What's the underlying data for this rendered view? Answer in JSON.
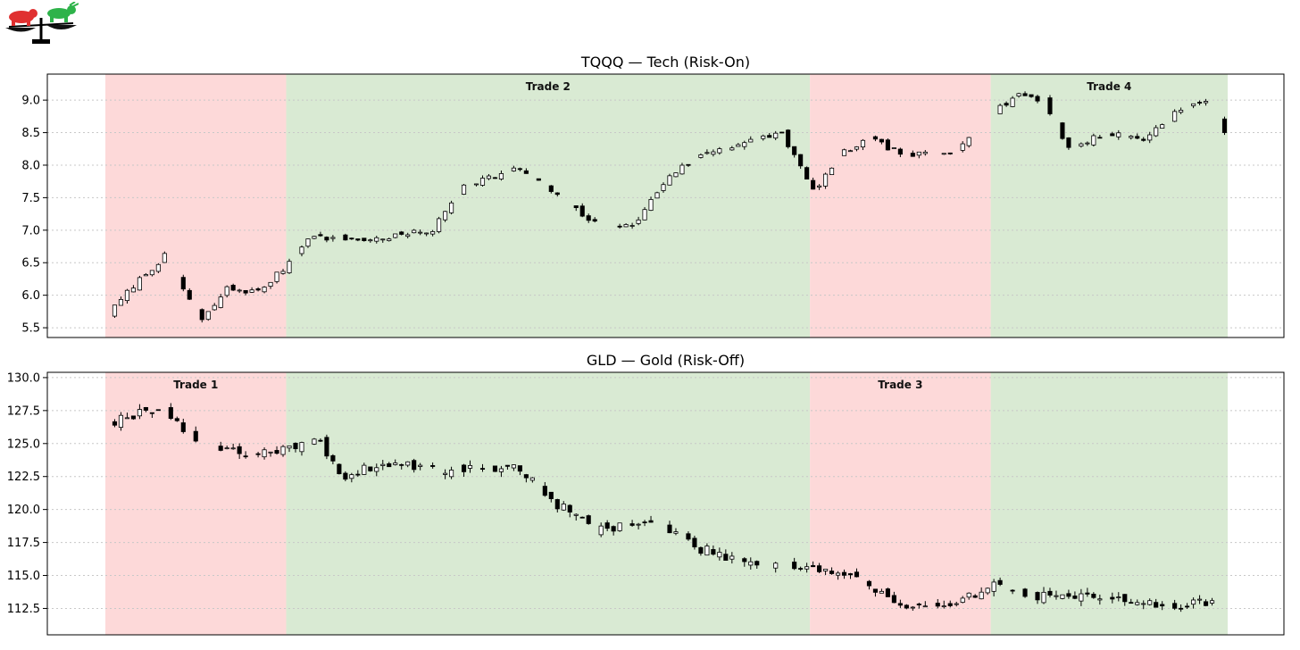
{
  "colors": {
    "risk_off_band": "#fdd9d9",
    "risk_on_band": "#d9ead3",
    "candle_up_fill": "#ffffff",
    "candle_down_fill": "#000000",
    "candle_edge": "#000000",
    "grid": "#c8c8c8",
    "logo_bear": "#e03030",
    "logo_bull": "#2eb34a"
  },
  "logo": {
    "icon_name": "bear-bull-balance-scale-icon"
  },
  "chart_data": [
    {
      "type": "candlestick",
      "title": "TQQQ — Tech (Risk-On)",
      "ylim": [
        5.35,
        9.4
      ],
      "yticks": [
        5.5,
        6.0,
        6.5,
        7.0,
        7.5,
        8.0,
        8.5,
        9.0
      ],
      "ytick_labels": [
        "5.5",
        "6.0",
        "6.5",
        "7.0",
        "7.5",
        "8.0",
        "8.5",
        "9.0"
      ],
      "grid": "horizontal-dotted",
      "n_bars": 180,
      "bands": [
        {
          "start": 0,
          "end": 29,
          "kind": "risk-off",
          "label": ""
        },
        {
          "start": 29,
          "end": 113,
          "kind": "risk-on",
          "label": "Trade 2"
        },
        {
          "start": 113,
          "end": 142,
          "kind": "risk-off",
          "label": ""
        },
        {
          "start": 142,
          "end": 180,
          "kind": "risk-on",
          "label": "Trade 4"
        }
      ],
      "anchors": [
        [
          0,
          5.7
        ],
        [
          4,
          6.15
        ],
        [
          9,
          6.6
        ],
        [
          15,
          5.6
        ],
        [
          19,
          6.1
        ],
        [
          24,
          6.05
        ],
        [
          28,
          6.4
        ],
        [
          32,
          6.9
        ],
        [
          42,
          6.85
        ],
        [
          52,
          7.0
        ],
        [
          57,
          7.7
        ],
        [
          66,
          7.95
        ],
        [
          78,
          7.1
        ],
        [
          84,
          7.05
        ],
        [
          90,
          7.85
        ],
        [
          96,
          8.2
        ],
        [
          108,
          8.5
        ],
        [
          113,
          7.6
        ],
        [
          118,
          8.2
        ],
        [
          122,
          8.4
        ],
        [
          128,
          8.15
        ],
        [
          135,
          8.2
        ],
        [
          142,
          8.8
        ],
        [
          146,
          9.1
        ],
        [
          150,
          9.0
        ],
        [
          154,
          8.25
        ],
        [
          160,
          8.5
        ],
        [
          166,
          8.4
        ],
        [
          171,
          8.8
        ],
        [
          176,
          9.0
        ],
        [
          180,
          8.3
        ]
      ],
      "vol": 0.055,
      "seed": 7
    },
    {
      "type": "candlestick",
      "title": "GLD — Gold (Risk-Off)",
      "ylim": [
        110.5,
        130.4
      ],
      "yticks": [
        112.5,
        115.0,
        117.5,
        120.0,
        122.5,
        125.0,
        127.5,
        130.0
      ],
      "ytick_labels": [
        "112.5",
        "115.0",
        "117.5",
        "120.0",
        "122.5",
        "125.0",
        "127.5",
        "130.0"
      ],
      "grid": "horizontal-dotted",
      "n_bars": 180,
      "bands": [
        {
          "start": 0,
          "end": 29,
          "kind": "risk-off",
          "label": "Trade 1"
        },
        {
          "start": 29,
          "end": 113,
          "kind": "risk-on",
          "label": ""
        },
        {
          "start": 113,
          "end": 142,
          "kind": "risk-off",
          "label": "Trade 3"
        },
        {
          "start": 142,
          "end": 180,
          "kind": "risk-on",
          "label": ""
        }
      ],
      "anchors": [
        [
          0,
          126.6
        ],
        [
          8,
          127.8
        ],
        [
          14,
          125.3
        ],
        [
          22,
          124.3
        ],
        [
          30,
          124.6
        ],
        [
          34,
          125.2
        ],
        [
          37,
          122.5
        ],
        [
          45,
          123.5
        ],
        [
          52,
          123.0
        ],
        [
          66,
          123.2
        ],
        [
          70,
          121.0
        ],
        [
          78,
          118.6
        ],
        [
          88,
          119.0
        ],
        [
          95,
          117.0
        ],
        [
          103,
          116.0
        ],
        [
          113,
          115.6
        ],
        [
          120,
          114.8
        ],
        [
          128,
          112.3
        ],
        [
          135,
          113.0
        ],
        [
          142,
          114.2
        ],
        [
          152,
          113.2
        ],
        [
          160,
          113.6
        ],
        [
          170,
          112.5
        ],
        [
          176,
          113.0
        ],
        [
          180,
          113.7
        ]
      ],
      "vol": 0.45,
      "seed": 19
    }
  ]
}
